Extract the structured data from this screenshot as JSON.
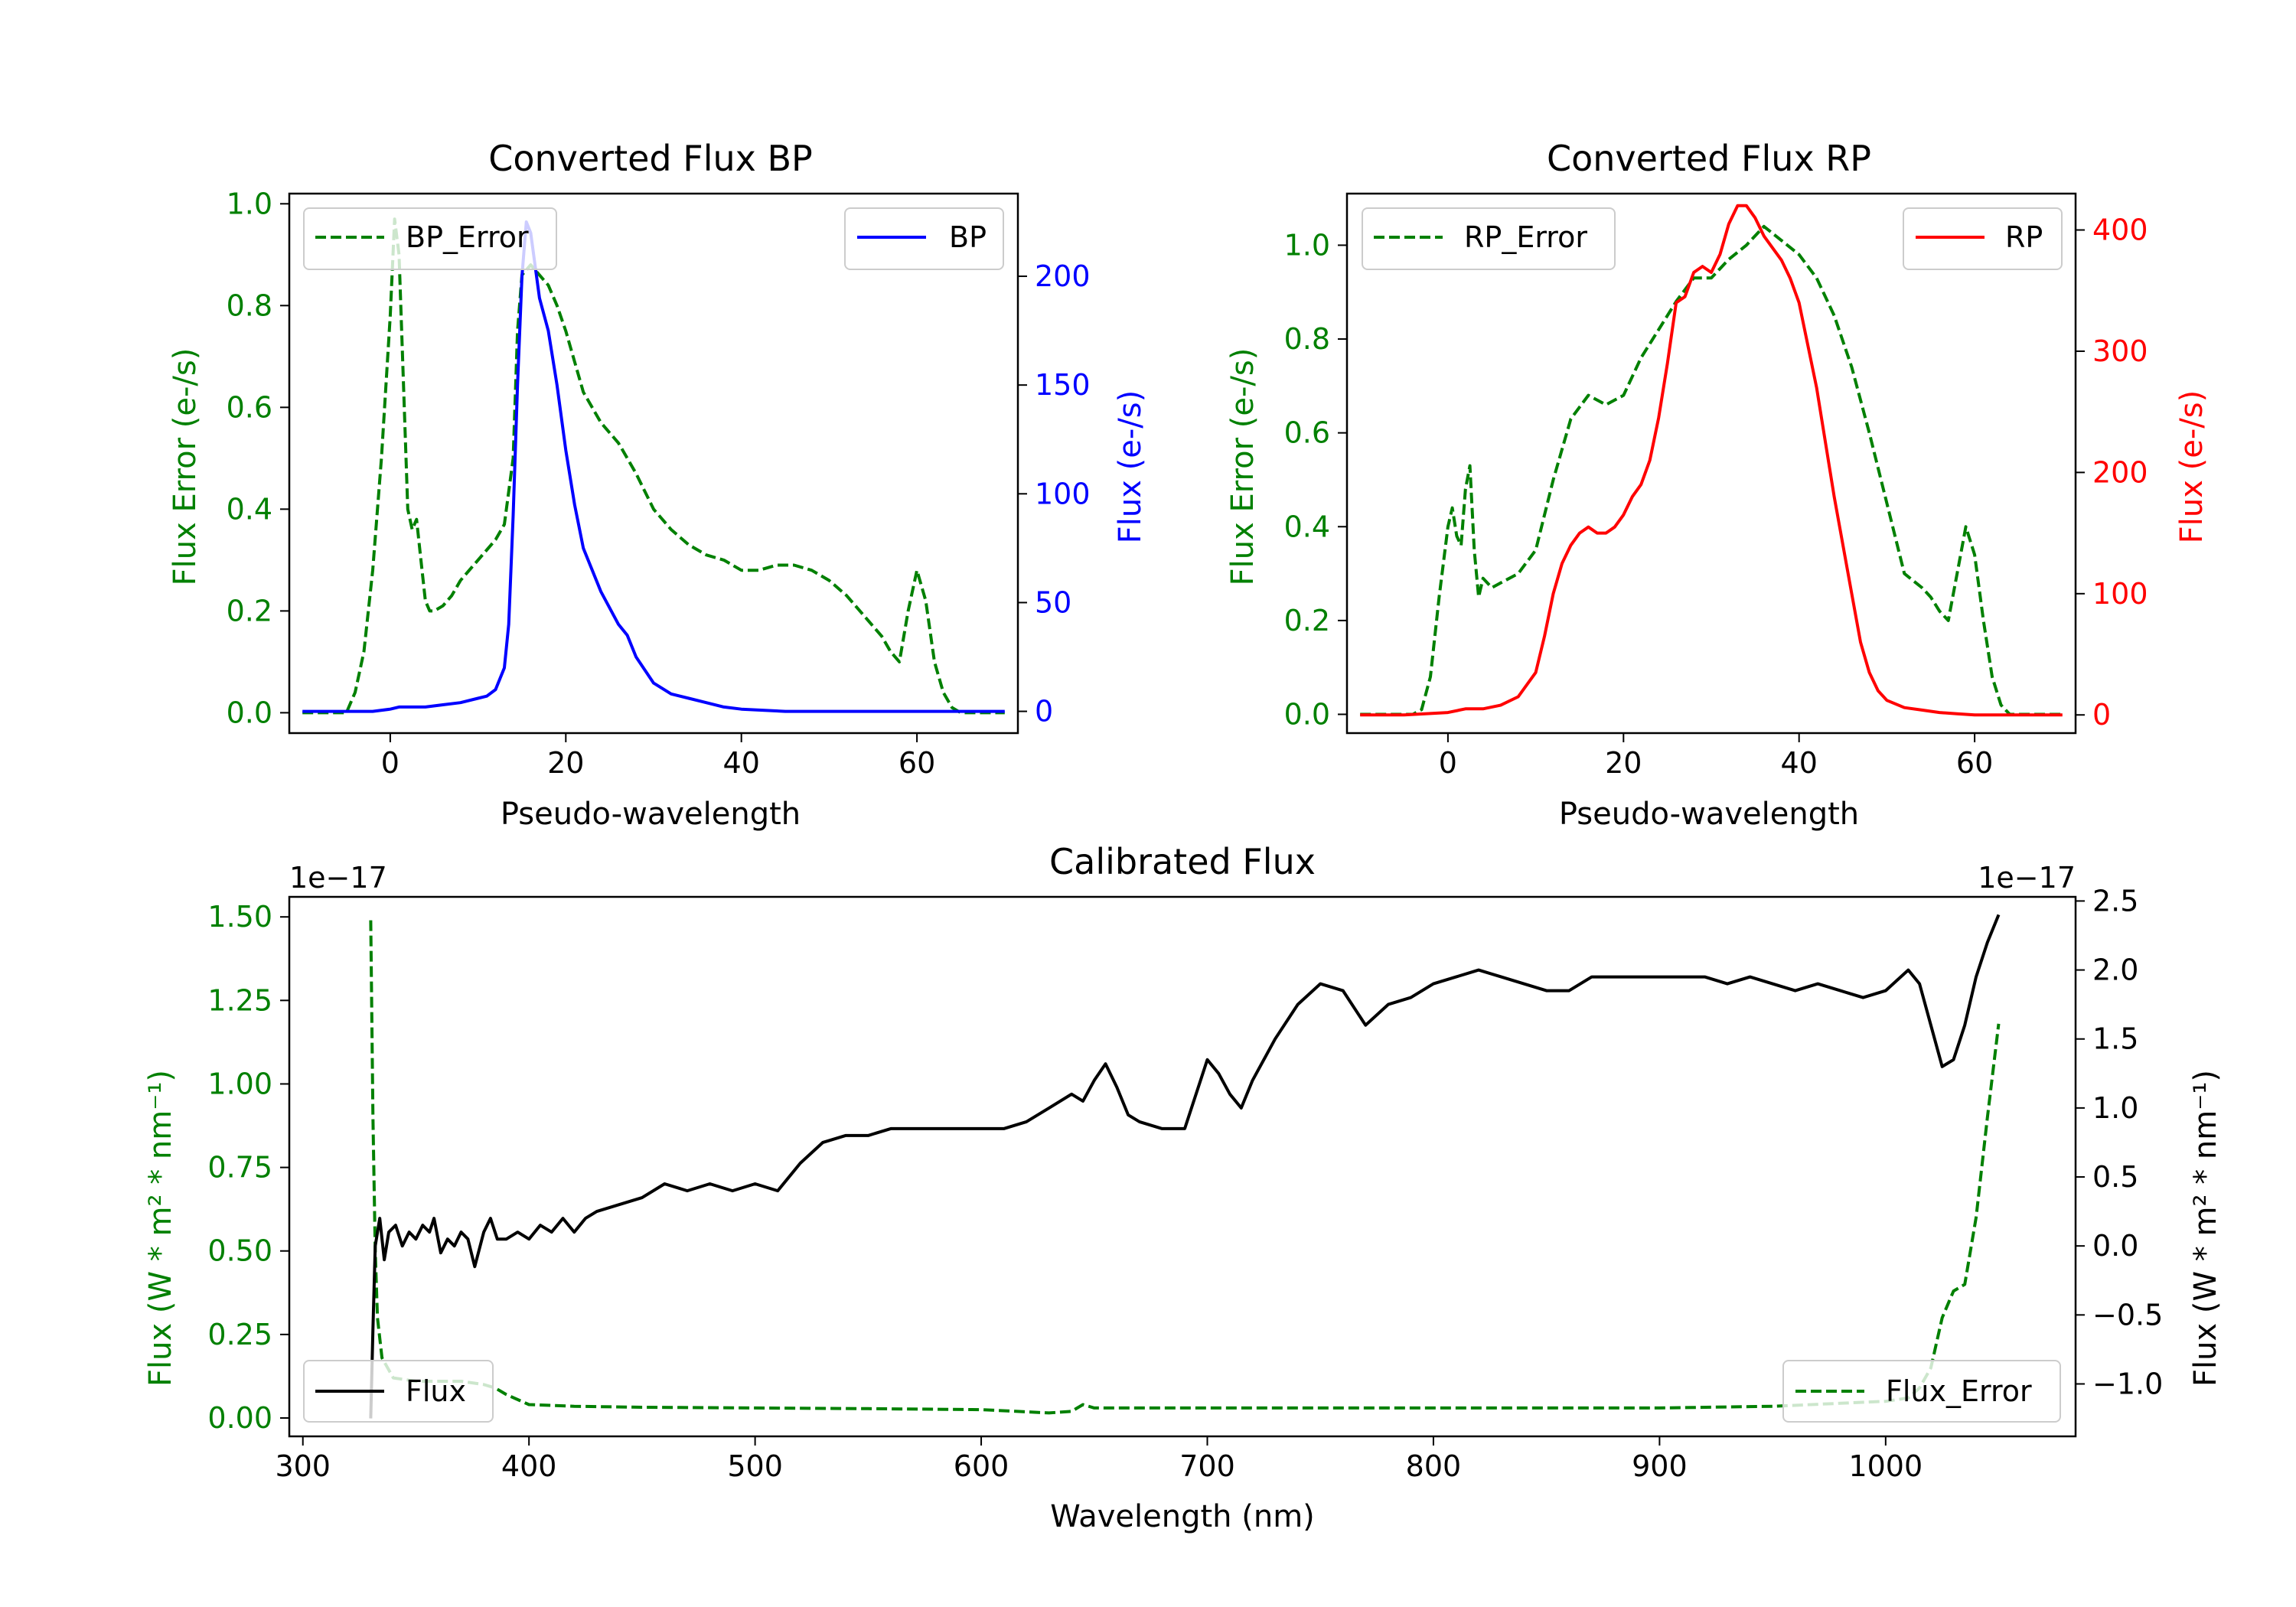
{
  "colors": {
    "green": "#008000",
    "blue": "#0000ff",
    "red": "#ff0000",
    "black": "#000000"
  },
  "chart_data": [
    {
      "id": "bp",
      "type": "line",
      "title": "Converted Flux BP",
      "xlabel": "Pseudo-wavelength",
      "ylabel_left": "Flux Error (e-/s)",
      "ylabel_right": "Flux (e-/s)",
      "xlim": [
        -11.5,
        71.5
      ],
      "ylim_left": [
        -0.04,
        1.02
      ],
      "ylim_right": [
        -10,
        238
      ],
      "xticks": [
        "0",
        "20",
        "40",
        "60"
      ],
      "xtick_values": [
        0,
        20,
        40,
        60
      ],
      "yticks_left": [
        "0.0",
        "0.2",
        "0.4",
        "0.6",
        "0.8",
        "1.0"
      ],
      "ytick_values_left": [
        0,
        0.2,
        0.4,
        0.6,
        0.8,
        1.0
      ],
      "yticks_right": [
        "0",
        "50",
        "100",
        "150",
        "200"
      ],
      "ytick_values_right": [
        0,
        50,
        100,
        150,
        200
      ],
      "series": [
        {
          "name": "BP_Error",
          "axis": "left",
          "color": "#008000",
          "dash": true,
          "x": [
            -10,
            -5,
            -4,
            -3,
            -2,
            -1,
            0,
            0.5,
            1,
            1.5,
            2,
            2.5,
            3,
            3.5,
            4,
            4.5,
            5,
            6,
            7,
            8,
            10,
            12,
            13,
            14,
            14.5,
            15,
            16,
            17,
            18,
            19,
            20,
            22,
            24,
            26,
            27,
            28,
            30,
            32,
            34,
            36,
            38,
            40,
            42,
            44,
            46,
            48,
            50,
            52,
            54,
            56,
            57,
            58,
            59,
            60,
            61,
            62,
            63,
            64,
            65,
            70
          ],
          "y": [
            0,
            0,
            0.04,
            0.12,
            0.28,
            0.5,
            0.78,
            0.97,
            0.9,
            0.65,
            0.4,
            0.36,
            0.38,
            0.3,
            0.22,
            0.2,
            0.2,
            0.21,
            0.23,
            0.26,
            0.3,
            0.34,
            0.37,
            0.5,
            0.75,
            0.86,
            0.88,
            0.86,
            0.84,
            0.8,
            0.75,
            0.63,
            0.57,
            0.53,
            0.5,
            0.47,
            0.4,
            0.36,
            0.33,
            0.31,
            0.3,
            0.28,
            0.28,
            0.29,
            0.29,
            0.28,
            0.26,
            0.23,
            0.19,
            0.15,
            0.12,
            0.1,
            0.2,
            0.28,
            0.22,
            0.1,
            0.04,
            0.01,
            0,
            0
          ]
        },
        {
          "name": "BP",
          "axis": "right",
          "color": "#0000ff",
          "dash": false,
          "x": [
            -10,
            -5,
            -2,
            0,
            1,
            2,
            4,
            6,
            8,
            10,
            11,
            12,
            13,
            13.5,
            14,
            14.5,
            15,
            15.5,
            16,
            17,
            18,
            19,
            20,
            21,
            22,
            24,
            26,
            27,
            28,
            30,
            32,
            34,
            36,
            38,
            40,
            45,
            50,
            55,
            60,
            65,
            70
          ],
          "y": [
            0,
            0,
            0,
            1,
            2,
            2,
            2,
            3,
            4,
            6,
            7,
            10,
            20,
            40,
            90,
            150,
            200,
            225,
            220,
            190,
            175,
            150,
            120,
            95,
            75,
            55,
            40,
            35,
            25,
            13,
            8,
            6,
            4,
            2,
            1,
            0,
            0,
            0,
            0,
            0,
            0
          ]
        }
      ],
      "legend": [
        {
          "label": "BP_Error",
          "loc": "upper-left"
        },
        {
          "label": "BP",
          "loc": "upper-right"
        }
      ]
    },
    {
      "id": "rp",
      "type": "line",
      "title": "Converted Flux RP",
      "xlabel": "Pseudo-wavelength",
      "ylabel_left": "Flux Error (e-/s)",
      "ylabel_right": "Flux (e-/s)",
      "xlim": [
        -11.5,
        71.5
      ],
      "ylim_left": [
        -0.04,
        1.11
      ],
      "ylim_right": [
        -15,
        430
      ],
      "xticks": [
        "0",
        "20",
        "40",
        "60"
      ],
      "xtick_values": [
        0,
        20,
        40,
        60
      ],
      "yticks_left": [
        "0.0",
        "0.2",
        "0.4",
        "0.6",
        "0.8",
        "1.0"
      ],
      "ytick_values_left": [
        0,
        0.2,
        0.4,
        0.6,
        0.8,
        1.0
      ],
      "yticks_right": [
        "0",
        "100",
        "200",
        "300",
        "400"
      ],
      "ytick_values_right": [
        0,
        100,
        200,
        300,
        400
      ],
      "series": [
        {
          "name": "RP_Error",
          "axis": "left",
          "color": "#008000",
          "dash": true,
          "x": [
            -10,
            -4,
            -3,
            -2,
            -1,
            0,
            0.5,
            1,
            1.5,
            2,
            2.5,
            3,
            3.5,
            4,
            5,
            6,
            8,
            10,
            12,
            14,
            16,
            18,
            20,
            22,
            24,
            26,
            28,
            30,
            32,
            34,
            36,
            38,
            40,
            42,
            44,
            46,
            48,
            50,
            52,
            54,
            55,
            56,
            57,
            58,
            59,
            60,
            61,
            62,
            63,
            64,
            70
          ],
          "y": [
            0,
            0,
            0.01,
            0.08,
            0.25,
            0.4,
            0.44,
            0.38,
            0.36,
            0.48,
            0.53,
            0.35,
            0.25,
            0.29,
            0.27,
            0.28,
            0.3,
            0.35,
            0.5,
            0.63,
            0.68,
            0.66,
            0.68,
            0.76,
            0.82,
            0.88,
            0.93,
            0.93,
            0.97,
            1.0,
            1.04,
            1.01,
            0.98,
            0.93,
            0.85,
            0.74,
            0.6,
            0.45,
            0.3,
            0.27,
            0.25,
            0.22,
            0.2,
            0.3,
            0.4,
            0.34,
            0.2,
            0.08,
            0.02,
            0,
            0
          ]
        },
        {
          "name": "RP",
          "axis": "right",
          "color": "#ff0000",
          "dash": false,
          "x": [
            -10,
            -5,
            0,
            2,
            4,
            6,
            8,
            10,
            11,
            12,
            13,
            14,
            15,
            16,
            17,
            18,
            19,
            20,
            21,
            22,
            23,
            24,
            25,
            26,
            27,
            28,
            29,
            30,
            31,
            32,
            33,
            34,
            35,
            36,
            37,
            38,
            39,
            40,
            42,
            44,
            46,
            47,
            48,
            49,
            50,
            52,
            54,
            56,
            58,
            60,
            62,
            64,
            65,
            70
          ],
          "y": [
            0,
            0,
            2,
            5,
            5,
            8,
            15,
            35,
            65,
            100,
            125,
            140,
            150,
            155,
            150,
            150,
            155,
            165,
            180,
            190,
            210,
            245,
            290,
            340,
            345,
            365,
            370,
            365,
            380,
            405,
            420,
            420,
            410,
            395,
            385,
            375,
            360,
            340,
            270,
            180,
            100,
            60,
            35,
            20,
            12,
            6,
            4,
            2,
            1,
            0,
            0,
            0,
            0,
            0
          ]
        }
      ],
      "legend": [
        {
          "label": "RP_Error",
          "loc": "upper-left"
        },
        {
          "label": "RP",
          "loc": "upper-right"
        }
      ]
    },
    {
      "id": "cal",
      "type": "line",
      "title": "Calibrated Flux",
      "xlabel": "Wavelength (nm)",
      "ylabel_left": "Flux (W * m² * nm⁻¹)",
      "ylabel_right": "Flux (W * m² * nm⁻¹)",
      "offset_left": "1e−17",
      "offset_right": "1e−17",
      "xlim": [
        294,
        1084
      ],
      "ylim_left": [
        -0.055,
        1.56
      ],
      "ylim_right": [
        -1.38,
        2.53
      ],
      "xticks": [
        "300",
        "400",
        "500",
        "600",
        "700",
        "800",
        "900",
        "1000"
      ],
      "xtick_values": [
        300,
        400,
        500,
        600,
        700,
        800,
        900,
        1000
      ],
      "yticks_left": [
        "0.00",
        "0.25",
        "0.50",
        "0.75",
        "1.00",
        "1.25",
        "1.50"
      ],
      "ytick_values_left": [
        0,
        0.25,
        0.5,
        0.75,
        1.0,
        1.25,
        1.5
      ],
      "yticks_right": [
        "−1.0",
        "−0.5",
        "0.0",
        "0.5",
        "1.0",
        "1.5",
        "2.0",
        "2.5"
      ],
      "ytick_values_right": [
        -1.0,
        -0.5,
        0.0,
        0.5,
        1.0,
        1.5,
        2.0,
        2.5
      ],
      "series": [
        {
          "name": "Flux_Error",
          "axis": "left",
          "color": "#008000",
          "dash": true,
          "x": [
            330,
            331,
            332,
            333,
            335,
            340,
            350,
            360,
            370,
            380,
            385,
            390,
            400,
            420,
            450,
            500,
            550,
            600,
            630,
            640,
            645,
            650,
            700,
            750,
            800,
            850,
            900,
            950,
            1000,
            1010,
            1015,
            1020,
            1025,
            1030,
            1035,
            1040,
            1045,
            1050
          ],
          "y": [
            1.49,
            0.9,
            0.5,
            0.3,
            0.18,
            0.12,
            0.11,
            0.11,
            0.11,
            0.1,
            0.09,
            0.07,
            0.04,
            0.035,
            0.032,
            0.03,
            0.028,
            0.025,
            0.015,
            0.02,
            0.04,
            0.03,
            0.03,
            0.03,
            0.03,
            0.03,
            0.03,
            0.035,
            0.05,
            0.06,
            0.09,
            0.15,
            0.3,
            0.38,
            0.4,
            0.6,
            0.9,
            1.18
          ]
        },
        {
          "name": "Flux",
          "axis": "right",
          "color": "#000000",
          "dash": false,
          "x": [
            330,
            331,
            332,
            334,
            336,
            338,
            341,
            344,
            347,
            350,
            353,
            356,
            358,
            361,
            364,
            367,
            370,
            373,
            376,
            380,
            383,
            386,
            390,
            395,
            400,
            405,
            410,
            415,
            420,
            425,
            430,
            440,
            450,
            460,
            470,
            480,
            490,
            500,
            510,
            520,
            530,
            540,
            550,
            560,
            570,
            580,
            590,
            600,
            610,
            620,
            630,
            640,
            645,
            650,
            655,
            660,
            665,
            670,
            680,
            690,
            700,
            705,
            710,
            715,
            720,
            730,
            740,
            750,
            760,
            770,
            780,
            790,
            800,
            810,
            820,
            830,
            840,
            850,
            860,
            870,
            880,
            890,
            900,
            910,
            920,
            930,
            940,
            950,
            960,
            970,
            980,
            990,
            1000,
            1010,
            1015,
            1020,
            1025,
            1030,
            1035,
            1040,
            1045,
            1050
          ],
          "y": [
            -1.25,
            -0.6,
            0.0,
            0.2,
            -0.1,
            0.1,
            0.15,
            0.0,
            0.1,
            0.05,
            0.15,
            0.1,
            0.2,
            -0.05,
            0.05,
            0.0,
            0.1,
            0.05,
            -0.15,
            0.1,
            0.2,
            0.05,
            0.05,
            0.1,
            0.05,
            0.15,
            0.1,
            0.2,
            0.1,
            0.2,
            0.25,
            0.3,
            0.35,
            0.45,
            0.4,
            0.45,
            0.4,
            0.45,
            0.4,
            0.6,
            0.75,
            0.8,
            0.8,
            0.85,
            0.85,
            0.85,
            0.85,
            0.85,
            0.85,
            0.9,
            1.0,
            1.1,
            1.05,
            1.2,
            1.32,
            1.15,
            0.95,
            0.9,
            0.85,
            0.85,
            1.35,
            1.25,
            1.1,
            1.0,
            1.2,
            1.5,
            1.75,
            1.9,
            1.85,
            1.6,
            1.75,
            1.8,
            1.9,
            1.95,
            2.0,
            1.95,
            1.9,
            1.85,
            1.85,
            1.95,
            1.95,
            1.95,
            1.95,
            1.95,
            1.95,
            1.9,
            1.95,
            1.9,
            1.85,
            1.9,
            1.85,
            1.8,
            1.85,
            2.0,
            1.9,
            1.6,
            1.3,
            1.35,
            1.6,
            1.95,
            2.2,
            2.4
          ]
        }
      ],
      "legend": [
        {
          "label": "Flux",
          "loc": "lower-left"
        },
        {
          "label": "Flux_Error",
          "loc": "lower-right"
        }
      ]
    }
  ]
}
